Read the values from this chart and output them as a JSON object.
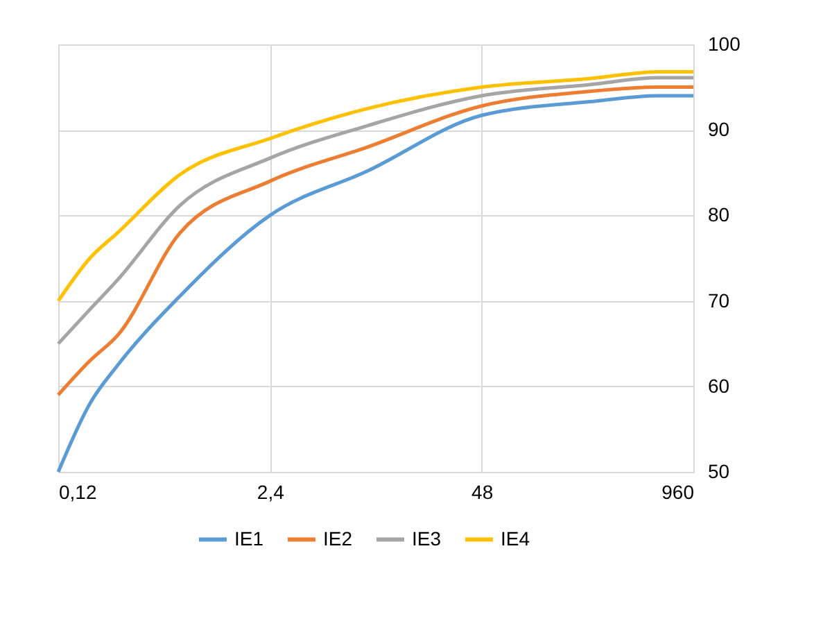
{
  "chart_data": {
    "type": "line",
    "x": [
      0.12,
      0.188,
      0.279,
      0.675,
      2.4,
      9.57,
      48,
      221,
      588,
      960
    ],
    "series": [
      {
        "name": "IE1",
        "color": "#5b9bd5",
        "values": [
          50,
          58,
          62.5,
          70.6,
          80,
          85.2,
          91.7,
          93.3,
          94,
          94
        ]
      },
      {
        "name": "IE2",
        "color": "#ed7d31",
        "values": [
          59,
          63,
          66,
          78,
          84,
          88,
          92.8,
          94.5,
          95,
          95
        ]
      },
      {
        "name": "IE3",
        "color": "#a5a5a5",
        "values": [
          65,
          69,
          72.5,
          81.2,
          86.7,
          90.5,
          94,
          95.3,
          96.1,
          96.1
        ]
      },
      {
        "name": "IE4",
        "color": "#ffc000",
        "values": [
          70,
          75,
          78,
          84.8,
          89,
          92.5,
          95,
          96,
          96.8,
          96.8
        ]
      }
    ],
    "log": "x",
    "xlim": [
      0.12,
      960
    ],
    "xticks": [
      {
        "value": 0.12,
        "label": "0,12"
      },
      {
        "value": 2.4,
        "label": "2,4"
      },
      48,
      960
    ],
    "ylim": [
      50,
      100
    ],
    "yticks": [
      50,
      60,
      70,
      80,
      90,
      100
    ],
    "grid": true,
    "legend": "bottom",
    "marker": "none",
    "line_style": "solid"
  }
}
